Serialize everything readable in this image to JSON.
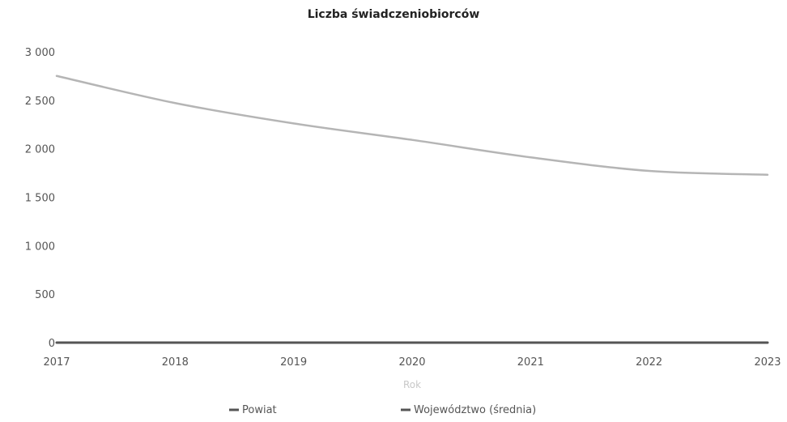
{
  "chart_data": {
    "type": "line",
    "title": "Liczba świadczeniobiorców",
    "xlabel": "Rok",
    "ylabel": "",
    "x": [
      "2017",
      "2018",
      "2019",
      "2020",
      "2021",
      "2022",
      "2023"
    ],
    "yticks": [
      "0",
      "500",
      "1 000",
      "1 500",
      "2 000",
      "2 500",
      "3 000"
    ],
    "ylim": [
      0,
      3000
    ],
    "grid": false,
    "legend_position": "bottom",
    "series": [
      {
        "name": "Powiat",
        "values": [
          2760,
          2480,
          2270,
          2100,
          1920,
          1780,
          1740
        ],
        "color": "#b5b5b5"
      },
      {
        "name": "Województwo (średnia)",
        "values": [
          8,
          8,
          8,
          8,
          8,
          8,
          8
        ],
        "color": "#555555"
      }
    ]
  }
}
